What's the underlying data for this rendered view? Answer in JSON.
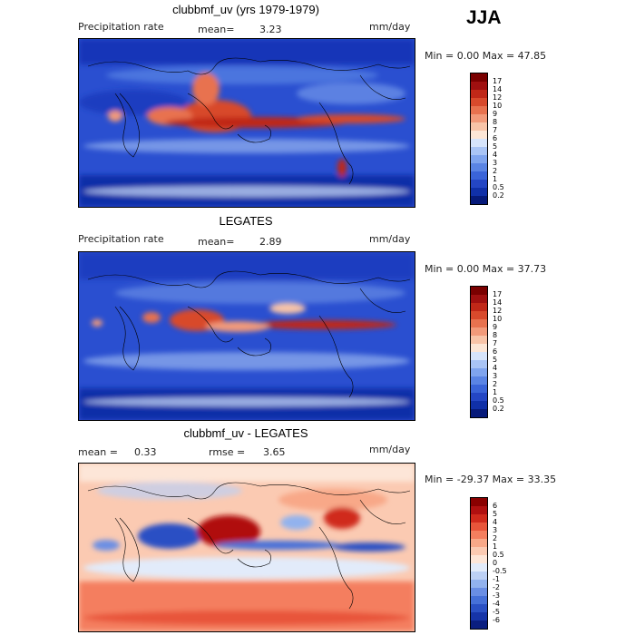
{
  "season": "JJA",
  "panels": [
    {
      "title": "clubbmf_uv (yrs 1979-1979)",
      "variable": "Precipitation rate",
      "stat1_label": "mean=",
      "stat1_value": "3.23",
      "stat2_label": "",
      "stat2_value": "",
      "units": "mm/day",
      "minmax": "Min =    0.00 Max =   47.85",
      "colorbar": {
        "labels": [
          "17",
          "14",
          "12",
          "10",
          "9",
          "8",
          "7",
          "6",
          "5",
          "4",
          "3",
          "2",
          "1",
          "0.5",
          "0.2"
        ],
        "colors": [
          "#7a0000",
          "#a01010",
          "#c02818",
          "#d84a2c",
          "#e8724f",
          "#f29a7a",
          "#f8c4a8",
          "#fce6d6",
          "#d6e4fb",
          "#a9c4f5",
          "#7fa4ee",
          "#5a84e4",
          "#3a64d8",
          "#2446c4",
          "#1030a8",
          "#061a7a"
        ]
      }
    },
    {
      "title": "LEGATES",
      "variable": "Precipitation rate",
      "stat1_label": "mean=",
      "stat1_value": "2.89",
      "stat2_label": "",
      "stat2_value": "",
      "units": "mm/day",
      "minmax": "Min =    0.00 Max =   37.73",
      "colorbar": {
        "labels": [
          "17",
          "14",
          "12",
          "10",
          "9",
          "8",
          "7",
          "6",
          "5",
          "4",
          "3",
          "2",
          "1",
          "0.5",
          "0.2"
        ],
        "colors": [
          "#7a0000",
          "#a01010",
          "#c02818",
          "#d84a2c",
          "#e8724f",
          "#f29a7a",
          "#f8c4a8",
          "#fce6d6",
          "#d6e4fb",
          "#a9c4f5",
          "#7fa4ee",
          "#5a84e4",
          "#3a64d8",
          "#2446c4",
          "#1030a8",
          "#061a7a"
        ]
      }
    },
    {
      "title": "clubbmf_uv - LEGATES",
      "variable": "",
      "stat1_label": "mean =",
      "stat1_value": "0.33",
      "stat2_label": "rmse =",
      "stat2_value": "3.65",
      "units": "mm/day",
      "minmax": "Min = -29.37 Max =   33.35",
      "colorbar": {
        "labels": [
          "6",
          "5",
          "4",
          "3",
          "2",
          "1",
          "0.5",
          "0",
          "-0.5",
          "-1",
          "-2",
          "-3",
          "-4",
          "-5",
          "-6"
        ],
        "colors": [
          "#8a0000",
          "#b01010",
          "#d02a1c",
          "#e8553a",
          "#f47e5e",
          "#f8a888",
          "#fbcab2",
          "#fde6d8",
          "#e2ebfa",
          "#bcd0f5",
          "#92b2ee",
          "#6a8ee4",
          "#4670d8",
          "#2a50c4",
          "#1634a8",
          "#0a1e80"
        ]
      }
    }
  ]
}
